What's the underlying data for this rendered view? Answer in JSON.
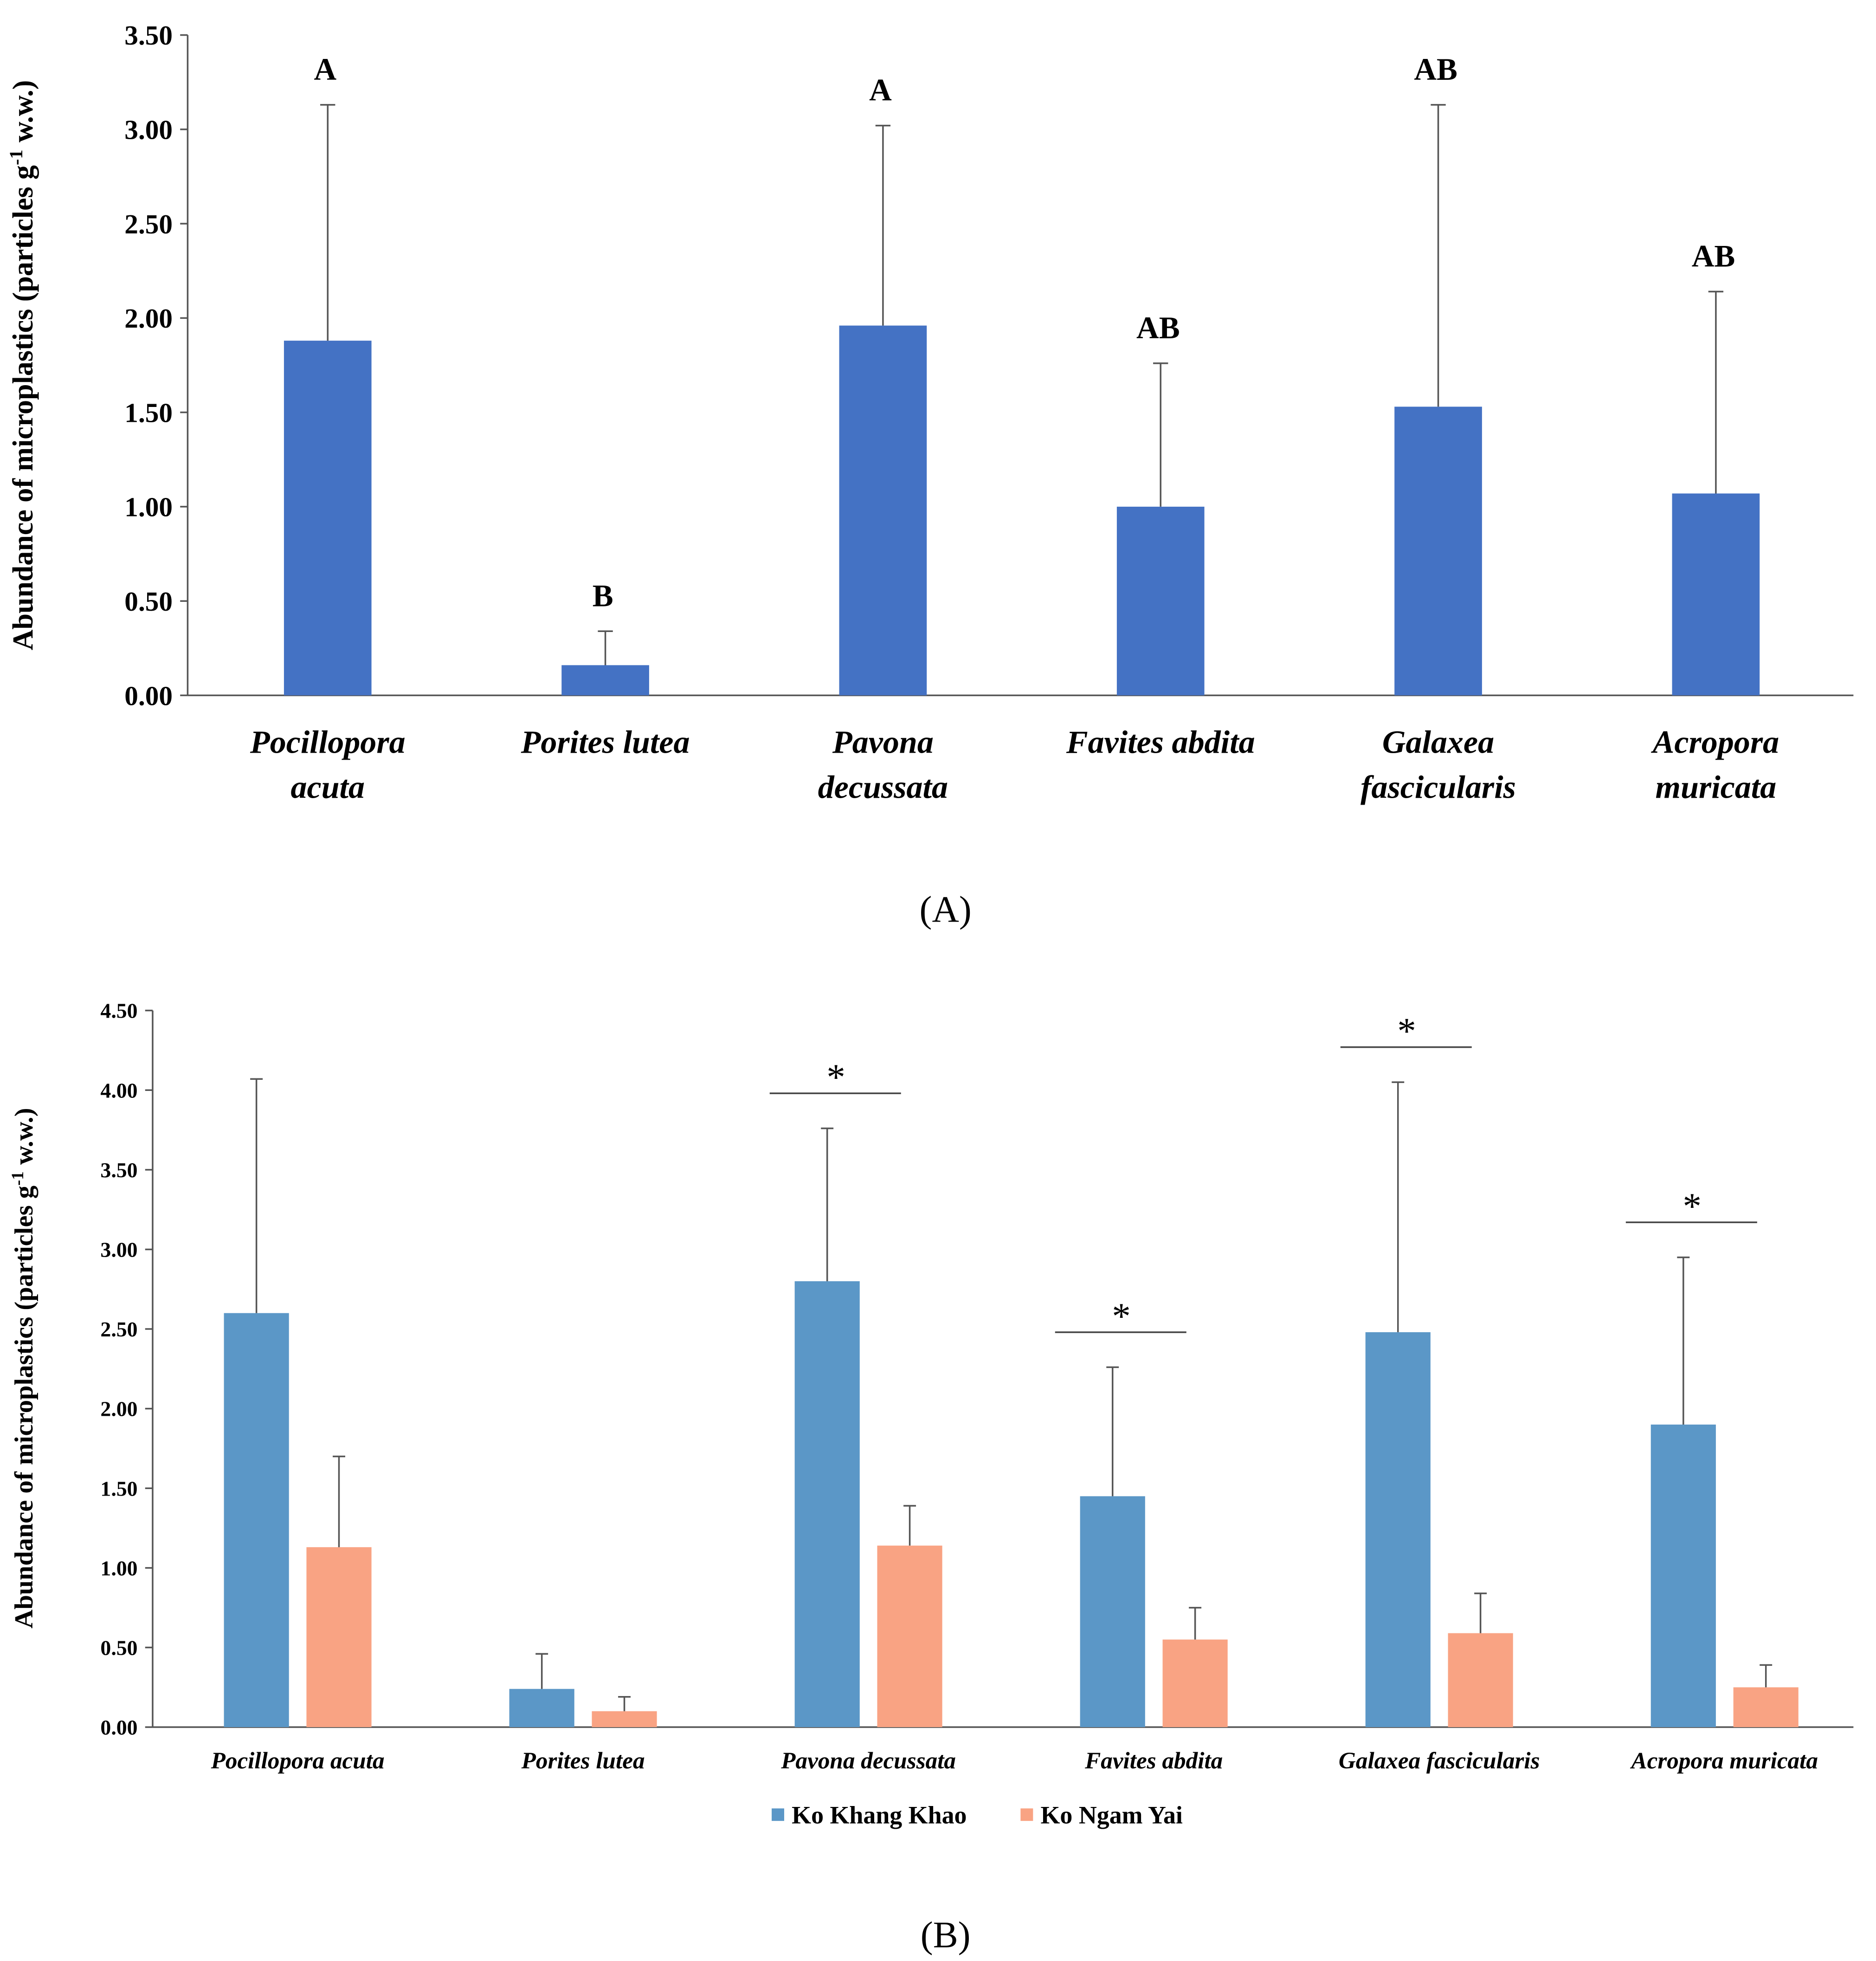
{
  "chart_data": [
    {
      "type": "bar",
      "panel_label": "(A)",
      "ylabel": "Abundance of microplastics (particles g",
      "ylabel_sup": "-1",
      "ylabel_tail": " w.w.)",
      "ylim": [
        0,
        3.5
      ],
      "yticks": [
        "0.00",
        "0.50",
        "1.00",
        "1.50",
        "2.00",
        "2.50",
        "3.00",
        "3.50"
      ],
      "categories": [
        [
          "Pocillopora",
          "acuta"
        ],
        [
          "Porites lutea"
        ],
        [
          "Pavona",
          "decussata"
        ],
        [
          "Favites abdita"
        ],
        [
          "Galaxea",
          "fascicularis"
        ],
        [
          "Acropora",
          "muricata"
        ]
      ],
      "values": [
        1.88,
        0.16,
        1.96,
        1.0,
        1.53,
        1.07
      ],
      "error_upper": [
        3.13,
        0.34,
        3.02,
        1.76,
        3.13,
        2.14
      ],
      "letters": [
        "A",
        "B",
        "A",
        "AB",
        "AB",
        "AB"
      ],
      "color": "#4472C4",
      "grid": false
    },
    {
      "type": "bar",
      "panel_label": "(B)",
      "ylabel": "Abundance of microplastics (particles g",
      "ylabel_sup": "-1",
      "ylabel_tail": " w.w.)",
      "ylim": [
        0,
        4.5
      ],
      "yticks": [
        "0.00",
        "0.50",
        "1.00",
        "1.50",
        "2.00",
        "2.50",
        "3.00",
        "3.50",
        "4.00",
        "4.50"
      ],
      "categories": [
        "Pocillopora acuta",
        "Porites lutea",
        "Pavona decussata",
        "Favites abdita",
        "Galaxea fascicularis",
        "Acropora muricata"
      ],
      "series": [
        {
          "name": "Ko Khang Khao",
          "color": "#5B97C7",
          "values": [
            2.6,
            0.24,
            2.8,
            1.45,
            2.48,
            1.9
          ],
          "error_upper": [
            4.07,
            0.46,
            3.76,
            2.26,
            4.05,
            2.95
          ]
        },
        {
          "name": "Ko Ngam Yai",
          "color": "#F9A383",
          "values": [
            1.13,
            0.1,
            1.14,
            0.55,
            0.59,
            0.25
          ],
          "error_upper": [
            1.7,
            0.19,
            1.39,
            0.75,
            0.84,
            0.39
          ]
        }
      ],
      "significance": [
        "",
        "",
        "*",
        "*",
        "*",
        "*"
      ],
      "legend_position": "bottom",
      "grid": false
    }
  ]
}
